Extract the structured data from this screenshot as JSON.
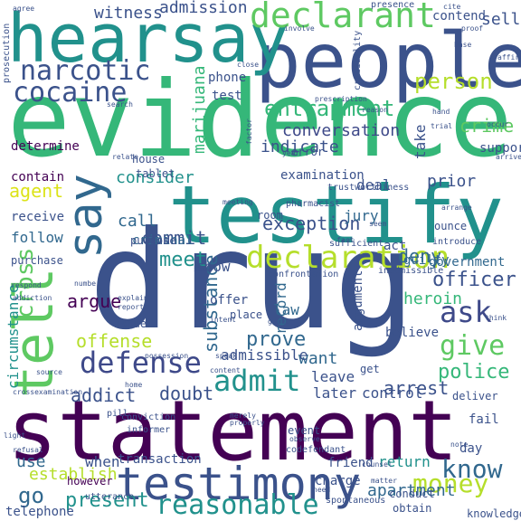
{
  "words": [
    {
      "text": "evidence",
      "color": "#35b779"
    },
    {
      "text": "drug",
      "color": "#3b528b"
    },
    {
      "text": "statement",
      "color": "#440154"
    },
    {
      "text": "people",
      "color": "#3b528b"
    },
    {
      "text": "hearsay",
      "color": "#21918c"
    },
    {
      "text": "testify",
      "color": "#21918c"
    },
    {
      "text": "tell",
      "color": "#5ec962"
    },
    {
      "text": "testimony",
      "color": "#3b528b"
    },
    {
      "text": "say",
      "color": "#31688e"
    },
    {
      "text": "declarant",
      "color": "#5ec962"
    },
    {
      "text": "declaration",
      "color": "#b5de2b"
    },
    {
      "text": "narcotic",
      "color": "#3b528b"
    },
    {
      "text": "cocaine",
      "color": "#3b528b"
    },
    {
      "text": "defense",
      "color": "#3e4989"
    },
    {
      "text": "admit",
      "color": "#21918c"
    },
    {
      "text": "give",
      "color": "#5ec962"
    },
    {
      "text": "know",
      "color": "#31688e"
    },
    {
      "text": "ask",
      "color": "#3e4989"
    },
    {
      "text": "money",
      "color": "#b5de2b"
    },
    {
      "text": "reasonable",
      "color": "#21918c"
    },
    {
      "text": "entrapment",
      "color": "#35b779"
    },
    {
      "text": "person",
      "color": "#b5de2b"
    },
    {
      "text": "officer",
      "color": "#3b528b"
    },
    {
      "text": "police",
      "color": "#35b779"
    },
    {
      "text": "exception",
      "color": "#3b528b"
    },
    {
      "text": "present",
      "color": "#21918c"
    },
    {
      "text": "go",
      "color": "#31688e"
    },
    {
      "text": "cross",
      "color": "#5ec962"
    },
    {
      "text": "crime",
      "color": "#5ec962"
    },
    {
      "text": "agent",
      "color": "#dce319"
    },
    {
      "text": "argue",
      "color": "#440154"
    },
    {
      "text": "prove",
      "color": "#31688e"
    },
    {
      "text": "substance",
      "color": "#31688e"
    },
    {
      "text": "meet",
      "color": "#21918c"
    },
    {
      "text": "commit",
      "color": "#3b528b"
    },
    {
      "text": "deny",
      "color": "#31688e"
    },
    {
      "text": "apartment",
      "color": "#31688e"
    },
    {
      "text": "arrest",
      "color": "#3b528b"
    },
    {
      "text": "addict",
      "color": "#3b528b"
    },
    {
      "text": "doubt",
      "color": "#3b528b"
    },
    {
      "text": "heroin",
      "color": "#35b779"
    },
    {
      "text": "use",
      "color": "#31688e"
    },
    {
      "text": "establish",
      "color": "#b5de2b"
    },
    {
      "text": "conversation",
      "color": "#3e4989"
    },
    {
      "text": "witness",
      "color": "#3b528b"
    },
    {
      "text": "admission",
      "color": "#3b528b"
    },
    {
      "text": "marijuana",
      "color": "#35b779"
    },
    {
      "text": "test",
      "color": "#3b528b"
    },
    {
      "text": "indicate",
      "color": "#3b528b"
    },
    {
      "text": "sell",
      "color": "#3b528b"
    },
    {
      "text": "consider",
      "color": "#21918c"
    },
    {
      "text": "call",
      "color": "#31688e"
    },
    {
      "text": "criminal",
      "color": "#31688e"
    },
    {
      "text": "offense",
      "color": "#b5de2b"
    },
    {
      "text": "show",
      "color": "#3b528b"
    },
    {
      "text": "law",
      "color": "#31688e"
    },
    {
      "text": "record",
      "color": "#31688e"
    },
    {
      "text": "want",
      "color": "#31688e"
    },
    {
      "text": "leave",
      "color": "#3b528b"
    },
    {
      "text": "later",
      "color": "#3b528b"
    },
    {
      "text": "admissible",
      "color": "#3b528b"
    },
    {
      "text": "circumstance",
      "color": "#21918c"
    },
    {
      "text": "jury",
      "color": "#31688e"
    },
    {
      "text": "deal",
      "color": "#3b528b"
    },
    {
      "text": "prior",
      "color": "#3b528b"
    },
    {
      "text": "control",
      "color": "#3b528b"
    },
    {
      "text": "return",
      "color": "#21918c"
    },
    {
      "text": "follow",
      "color": "#31688e"
    },
    {
      "text": "receive",
      "color": "#3b528b"
    },
    {
      "text": "contain",
      "color": "#440154"
    },
    {
      "text": "phone",
      "color": "#3b528b"
    },
    {
      "text": "house",
      "color": "#3b528b"
    },
    {
      "text": "contend",
      "color": "#3b528b"
    },
    {
      "text": "believe",
      "color": "#3b528b"
    },
    {
      "text": "guilty",
      "color": "#31688e"
    },
    {
      "text": "argument",
      "color": "#3b528b"
    },
    {
      "text": "when",
      "color": "#3b528b"
    },
    {
      "text": "friend",
      "color": "#3b528b"
    },
    {
      "text": "take",
      "color": "#3b528b"
    },
    {
      "text": "examination",
      "color": "#3b528b"
    },
    {
      "text": "determine",
      "color": "#440154"
    },
    {
      "text": "government",
      "color": "#31688e"
    },
    {
      "text": "transaction",
      "color": "#3b528b"
    },
    {
      "text": "purchase",
      "color": "#3b528b"
    },
    {
      "text": "day",
      "color": "#3b528b"
    },
    {
      "text": "act",
      "color": "#3b528b"
    },
    {
      "text": "however",
      "color": "#440154"
    },
    {
      "text": "telephone",
      "color": "#3b528b"
    },
    {
      "text": "charge",
      "color": "#3b528b"
    },
    {
      "text": "conduct",
      "color": "#3b528b"
    },
    {
      "text": "obtain",
      "color": "#3b528b"
    },
    {
      "text": "knowledge",
      "color": "#3b528b"
    },
    {
      "text": "event",
      "color": "#3b528b"
    },
    {
      "text": "room",
      "color": "#3b528b"
    },
    {
      "text": "ounce",
      "color": "#3b528b"
    },
    {
      "text": "issue",
      "color": "#3b528b"
    },
    {
      "text": "offer",
      "color": "#3b528b"
    },
    {
      "text": "place",
      "color": "#3b528b"
    },
    {
      "text": "purpose",
      "color": "#3b528b"
    },
    {
      "text": "fail",
      "color": "#3b528b"
    },
    {
      "text": "deliver",
      "color": "#3b528b"
    },
    {
      "text": "support",
      "color": "#3b528b"
    },
    {
      "text": "tablet",
      "color": "#3b528b"
    },
    {
      "text": "error",
      "color": "#3b528b"
    },
    {
      "text": "confrontation",
      "color": "#3b528b"
    },
    {
      "text": "spontaneous",
      "color": "#3b528b"
    },
    {
      "text": "utterance",
      "color": "#3b528b"
    },
    {
      "text": "codefendant",
      "color": "#3b528b"
    },
    {
      "text": "trustworthiness",
      "color": "#3b528b"
    },
    {
      "text": "inadmissible",
      "color": "#3b528b"
    },
    {
      "text": "pharmacist",
      "color": "#3b528b"
    },
    {
      "text": "sufficient",
      "color": "#3b528b"
    },
    {
      "text": "introduce",
      "color": "#3b528b"
    },
    {
      "text": "prosecution",
      "color": "#3b528b"
    },
    {
      "text": "informer",
      "color": "#3b528b"
    },
    {
      "text": "conviction",
      "color": "#3b528b"
    },
    {
      "text": "credibility",
      "color": "#3b528b"
    },
    {
      "text": "presence",
      "color": "#3b528b"
    },
    {
      "text": "agree",
      "color": "#3b528b"
    },
    {
      "text": "involve",
      "color": "#3b528b"
    },
    {
      "text": "proof",
      "color": "#3b528b"
    },
    {
      "text": "base",
      "color": "#3b528b"
    },
    {
      "text": "affirm",
      "color": "#3b528b"
    },
    {
      "text": "arrive",
      "color": "#3b528b"
    },
    {
      "text": "occur",
      "color": "#3b528b"
    },
    {
      "text": "trial",
      "color": "#3b528b"
    },
    {
      "text": "arrange",
      "color": "#3b528b"
    },
    {
      "text": "prescription",
      "color": "#3b528b"
    },
    {
      "text": "search",
      "color": "#3b528b"
    },
    {
      "text": "relate",
      "color": "#3b528b"
    },
    {
      "text": "close",
      "color": "#3b528b"
    },
    {
      "text": "factor",
      "color": "#3b528b"
    },
    {
      "text": "respond",
      "color": "#3b528b"
    },
    {
      "text": "addiction",
      "color": "#3b528b"
    },
    {
      "text": "number",
      "color": "#3b528b"
    },
    {
      "text": "explain",
      "color": "#3b528b"
    },
    {
      "text": "report",
      "color": "#3b528b"
    },
    {
      "text": "intent",
      "color": "#3b528b"
    },
    {
      "text": "speak",
      "color": "#3b528b"
    },
    {
      "text": "possession",
      "color": "#3b528b"
    },
    {
      "text": "source",
      "color": "#3b528b"
    },
    {
      "text": "crossexamination",
      "color": "#3b528b"
    },
    {
      "text": "light",
      "color": "#3b528b"
    },
    {
      "text": "refusal",
      "color": "#3b528b"
    },
    {
      "text": "home",
      "color": "#3b528b"
    },
    {
      "text": "content",
      "color": "#3b528b"
    },
    {
      "text": "properly",
      "color": "#3b528b"
    },
    {
      "text": "merely",
      "color": "#3b528b"
    },
    {
      "text": "observe",
      "color": "#3b528b"
    },
    {
      "text": "counsel",
      "color": "#3b528b"
    },
    {
      "text": "matter",
      "color": "#3b528b"
    },
    {
      "text": "guilt",
      "color": "#3b528b"
    },
    {
      "text": "meeting",
      "color": "#3b528b"
    },
    {
      "text": "think",
      "color": "#3b528b"
    },
    {
      "text": "hand",
      "color": "#3b528b"
    },
    {
      "text": "reason",
      "color": "#3b528b"
    },
    {
      "text": "pill",
      "color": "#3b528b"
    },
    {
      "text": "get",
      "color": "#3b528b"
    },
    {
      "text": "need",
      "color": "#3b528b"
    },
    {
      "text": "note",
      "color": "#3b528b"
    },
    {
      "text": "year",
      "color": "#3b528b"
    },
    {
      "text": "fact",
      "color": "#3b528b"
    },
    {
      "text": "cite",
      "color": "#3b528b"
    },
    {
      "text": "seem",
      "color": "#3b528b"
    },
    {
      "text": "show",
      "color": "#3b528b"
    }
  ]
}
